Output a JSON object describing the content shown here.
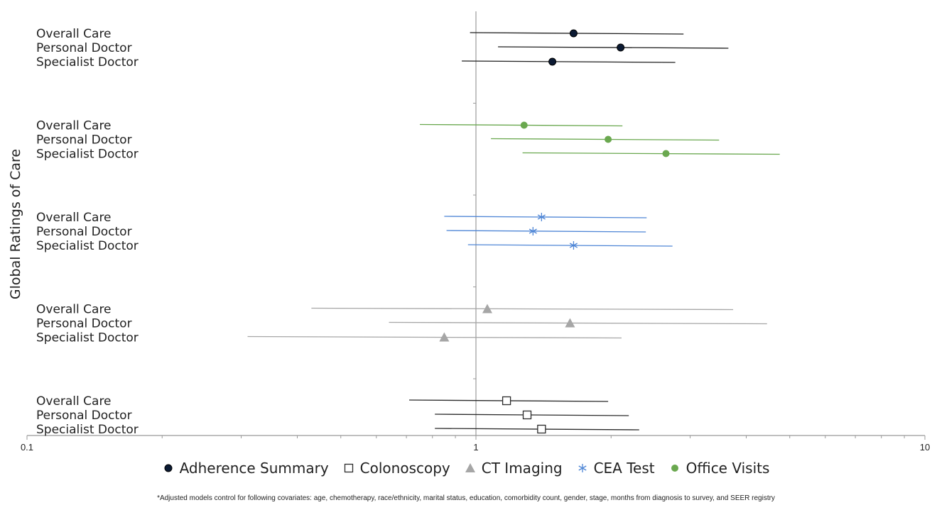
{
  "chart_data": {
    "type": "scatter",
    "subtype": "forest-plot",
    "title": "",
    "ylabel": "Global Ratings of Care",
    "xlabel": "",
    "xscale": "log",
    "xlim": [
      0.1,
      10
    ],
    "x_tick_labels": [
      "0.1",
      "1",
      "10"
    ],
    "reference_line": 1,
    "legend_position": "bottom",
    "series": [
      {
        "name": "Adherence Summary",
        "color": "#1f1f1f",
        "marker": "filled-circle",
        "points": [
          {
            "label": "Overall Care",
            "estimate": 1.65,
            "low": 0.97,
            "high": 2.9
          },
          {
            "label": "Personal Doctor",
            "estimate": 2.1,
            "low": 1.12,
            "high": 3.65
          },
          {
            "label": "Specialist Doctor",
            "estimate": 1.48,
            "low": 0.93,
            "high": 2.78
          }
        ]
      },
      {
        "name": "Office Visits",
        "color": "#6aa84f",
        "marker": "filled-circle",
        "points": [
          {
            "label": "Overall Care",
            "estimate": 1.28,
            "low": 0.75,
            "high": 2.12
          },
          {
            "label": "Personal Doctor",
            "estimate": 1.97,
            "low": 1.08,
            "high": 3.48
          },
          {
            "label": "Specialist Doctor",
            "estimate": 2.65,
            "low": 1.27,
            "high": 4.75
          }
        ]
      },
      {
        "name": "CEA Test",
        "color": "#4f86d6",
        "marker": "asterisk",
        "points": [
          {
            "label": "Overall Care",
            "estimate": 1.4,
            "low": 0.85,
            "high": 2.4
          },
          {
            "label": "Personal Doctor",
            "estimate": 1.34,
            "low": 0.86,
            "high": 2.39
          },
          {
            "label": "Specialist Doctor",
            "estimate": 1.65,
            "low": 0.96,
            "high": 2.74
          }
        ]
      },
      {
        "name": "CT Imaging",
        "color": "#a6a6a6",
        "marker": "triangle",
        "points": [
          {
            "label": "Overall Care",
            "estimate": 1.06,
            "low": 0.43,
            "high": 3.74
          },
          {
            "label": "Personal Doctor",
            "estimate": 1.62,
            "low": 0.64,
            "high": 4.45
          },
          {
            "label": "Specialist Doctor",
            "estimate": 0.85,
            "low": 0.31,
            "high": 2.11
          }
        ]
      },
      {
        "name": "Colonoscopy",
        "color": "#2b2b2b",
        "marker": "open-square",
        "points": [
          {
            "label": "Overall Care",
            "estimate": 1.17,
            "low": 0.71,
            "high": 1.97
          },
          {
            "label": "Personal Doctor",
            "estimate": 1.3,
            "low": 0.81,
            "high": 2.19
          },
          {
            "label": "Specialist Doctor",
            "estimate": 1.4,
            "low": 0.81,
            "high": 2.31
          }
        ]
      }
    ],
    "legend_order": [
      "Adherence Summary",
      "Colonoscopy",
      "CT Imaging",
      "CEA Test",
      "Office Visits"
    ]
  },
  "footnote": "*Adjusted models control for following covariates: age, chemotherapy,  race/ethnicity, marital status, education, comorbidity count, gender,  stage,  months from diagnosis to survey, and SEER  registry"
}
